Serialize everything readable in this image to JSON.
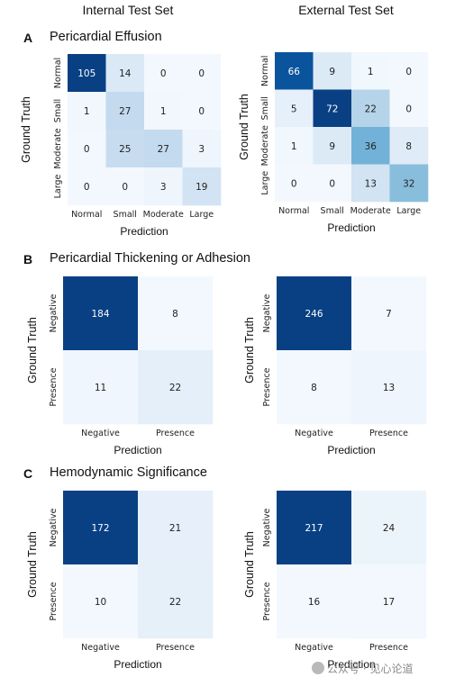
{
  "headers": {
    "internal": "Internal Test Set",
    "external": "External Test Set"
  },
  "panels": [
    {
      "letter": "A",
      "title": "Pericardial Effusion"
    },
    {
      "letter": "B",
      "title": "Pericardial Thickening or Adhesion"
    },
    {
      "letter": "C",
      "title": "Hemodynamic Significance"
    }
  ],
  "colors": {
    "low": "#f7fbff",
    "high": "#08306b"
  },
  "chart_data": [
    {
      "type": "heatmap",
      "title": "Pericardial Effusion — Internal Test Set",
      "xlabel": "Prediction",
      "ylabel": "Ground Truth",
      "x_categories": [
        "Normal",
        "Small",
        "Moderate",
        "Large"
      ],
      "y_categories": [
        "Normal",
        "Small",
        "Moderate",
        "Large"
      ],
      "values": [
        [
          105,
          14,
          0,
          0
        ],
        [
          1,
          27,
          1,
          0
        ],
        [
          0,
          25,
          27,
          3
        ],
        [
          0,
          0,
          3,
          19
        ]
      ]
    },
    {
      "type": "heatmap",
      "title": "Pericardial Effusion — External Test Set",
      "xlabel": "Prediction",
      "ylabel": "Ground Truth",
      "x_categories": [
        "Normal",
        "Small",
        "Moderate",
        "Large"
      ],
      "y_categories": [
        "Normal",
        "Small",
        "Moderate",
        "Large"
      ],
      "values": [
        [
          66,
          9,
          1,
          0
        ],
        [
          5,
          72,
          22,
          0
        ],
        [
          1,
          9,
          36,
          8
        ],
        [
          0,
          0,
          13,
          32
        ]
      ]
    },
    {
      "type": "heatmap",
      "title": "Pericardial Thickening or Adhesion — Internal Test Set",
      "xlabel": "Prediction",
      "ylabel": "Ground Truth",
      "x_categories": [
        "Negative",
        "Presence"
      ],
      "y_categories": [
        "Negative",
        "Presence"
      ],
      "values": [
        [
          184,
          8
        ],
        [
          11,
          22
        ]
      ]
    },
    {
      "type": "heatmap",
      "title": "Pericardial Thickening or Adhesion — External Test Set",
      "xlabel": "Prediction",
      "ylabel": "Ground Truth",
      "x_categories": [
        "Negative",
        "Presence"
      ],
      "y_categories": [
        "Negative",
        "Presence"
      ],
      "values": [
        [
          246,
          7
        ],
        [
          8,
          13
        ]
      ]
    },
    {
      "type": "heatmap",
      "title": "Hemodynamic Significance — Internal Test Set",
      "xlabel": "Prediction",
      "ylabel": "Ground Truth",
      "x_categories": [
        "Negative",
        "Presence"
      ],
      "y_categories": [
        "Negative",
        "Presence"
      ],
      "values": [
        [
          172,
          21
        ],
        [
          10,
          22
        ]
      ]
    },
    {
      "type": "heatmap",
      "title": "Hemodynamic Significance — External Test Set",
      "xlabel": "Prediction",
      "ylabel": "Ground Truth",
      "x_categories": [
        "Negative",
        "Presence"
      ],
      "y_categories": [
        "Negative",
        "Presence"
      ],
      "values": [
        [
          217,
          24
        ],
        [
          16,
          17
        ]
      ]
    }
  ],
  "watermark": "公众号 · 见心论道"
}
